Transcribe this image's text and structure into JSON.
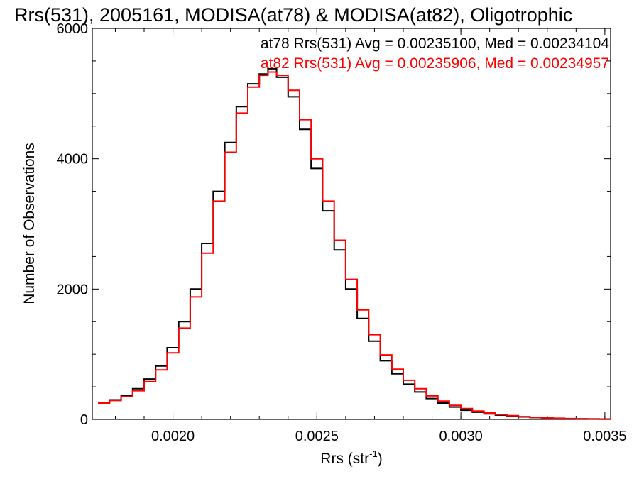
{
  "chart_data": {
    "type": "line",
    "title": "Rrs(531), 2005161, MODISA(at78) & MODISA(at82), Oligotrophic",
    "xlabel_main": "Rrs (str",
    "xlabel_sup": "-1",
    "xlabel_close": ")",
    "ylabel": "Number of Observations",
    "xlim": [
      0.00172,
      0.00352
    ],
    "ylim": [
      0,
      6000
    ],
    "x_ticks": [
      0.002,
      0.0025,
      0.003,
      0.0035
    ],
    "x_tick_labels": [
      "0.0020",
      "0.0025",
      "0.0030",
      "0.0035"
    ],
    "y_ticks": [
      0,
      2000,
      4000,
      6000
    ],
    "y_tick_labels": [
      "0",
      "2000",
      "4000",
      "6000"
    ],
    "grid": false,
    "legend_position": "top-right",
    "series": [
      {
        "name": "at78",
        "color": "#000000",
        "annotation": "at78 Rrs(531) Avg = 0.00235100, Med = 0.00234104",
        "x": [
          0.00174,
          0.00178,
          0.00182,
          0.00186,
          0.0019,
          0.00194,
          0.00198,
          0.00202,
          0.00206,
          0.0021,
          0.00214,
          0.00218,
          0.00222,
          0.00226,
          0.0023,
          0.00233,
          0.00236,
          0.0024,
          0.00244,
          0.00248,
          0.00252,
          0.00256,
          0.0026,
          0.00264,
          0.00268,
          0.00272,
          0.00276,
          0.0028,
          0.00284,
          0.00288,
          0.00292,
          0.00296,
          0.003,
          0.00304,
          0.00308,
          0.00312,
          0.00316,
          0.0032,
          0.00324,
          0.00328,
          0.00332,
          0.00336,
          0.0034,
          0.00344,
          0.00348,
          0.00352
        ],
        "y": [
          260,
          300,
          370,
          470,
          620,
          820,
          1100,
          1500,
          2000,
          2700,
          3500,
          4250,
          4800,
          5150,
          5300,
          5380,
          5250,
          4950,
          4450,
          3850,
          3200,
          2600,
          2000,
          1550,
          1200,
          900,
          700,
          540,
          420,
          320,
          250,
          190,
          140,
          110,
          85,
          65,
          50,
          38,
          28,
          20,
          15,
          11,
          8,
          6,
          4,
          3
        ]
      },
      {
        "name": "at82",
        "color": "#ff0000",
        "annotation": "at82 Rrs(531) Avg = 0.00235906, Med = 0.00234957",
        "x": [
          0.00174,
          0.00178,
          0.00182,
          0.00186,
          0.0019,
          0.00194,
          0.00198,
          0.00202,
          0.00206,
          0.0021,
          0.00214,
          0.00218,
          0.00222,
          0.00226,
          0.0023,
          0.00233,
          0.00236,
          0.0024,
          0.00244,
          0.00248,
          0.00252,
          0.00256,
          0.0026,
          0.00264,
          0.00268,
          0.00272,
          0.00276,
          0.0028,
          0.00284,
          0.00288,
          0.00292,
          0.00296,
          0.003,
          0.00304,
          0.00308,
          0.00312,
          0.00316,
          0.0032,
          0.00324,
          0.00328,
          0.00332,
          0.00336,
          0.0034,
          0.00344,
          0.00348,
          0.00352
        ],
        "y": [
          250,
          290,
          350,
          440,
          580,
          760,
          1020,
          1400,
          1880,
          2550,
          3350,
          4100,
          4700,
          5100,
          5280,
          5330,
          5280,
          5050,
          4600,
          4000,
          3350,
          2750,
          2150,
          1680,
          1300,
          990,
          770,
          600,
          470,
          360,
          280,
          215,
          165,
          128,
          98,
          75,
          57,
          43,
          32,
          23,
          17,
          12,
          9,
          6,
          4,
          3
        ]
      }
    ]
  }
}
